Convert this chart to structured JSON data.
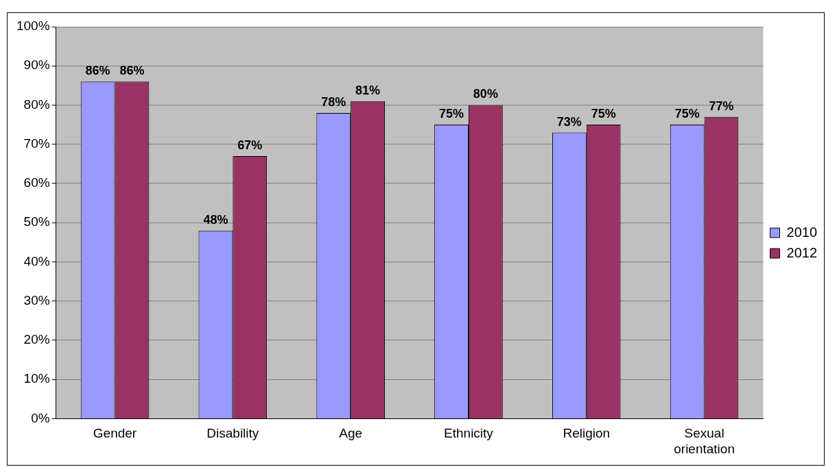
{
  "chart_data": {
    "type": "bar",
    "categories": [
      "Gender",
      "Disability",
      "Age",
      "Ethnicity",
      "Religion",
      "Sexual orientation"
    ],
    "series": [
      {
        "name": "2010",
        "color": "#9999ff",
        "values": [
          86,
          48,
          78,
          75,
          73,
          75
        ]
      },
      {
        "name": "2012",
        "color": "#993366",
        "values": [
          86,
          67,
          81,
          80,
          75,
          77
        ]
      }
    ],
    "ylim": [
      0,
      100
    ],
    "yticks": [
      {
        "value": 0,
        "label": "0%"
      },
      {
        "value": 10,
        "label": "10%"
      },
      {
        "value": 20,
        "label": "20%"
      },
      {
        "value": 30,
        "label": "30%"
      },
      {
        "value": 40,
        "label": "40%"
      },
      {
        "value": 50,
        "label": "50%"
      },
      {
        "value": 60,
        "label": "60%"
      },
      {
        "value": 70,
        "label": "70%"
      },
      {
        "value": 80,
        "label": "80%"
      },
      {
        "value": 90,
        "label": "90%"
      },
      {
        "value": 100,
        "label": "100%"
      }
    ],
    "value_labels": [
      [
        "86%",
        "48%",
        "78%",
        "75%",
        "73%",
        "75%"
      ],
      [
        "86%",
        "67%",
        "81%",
        "80%",
        "75%",
        "77%"
      ]
    ],
    "grid": "y",
    "legend": "right"
  }
}
